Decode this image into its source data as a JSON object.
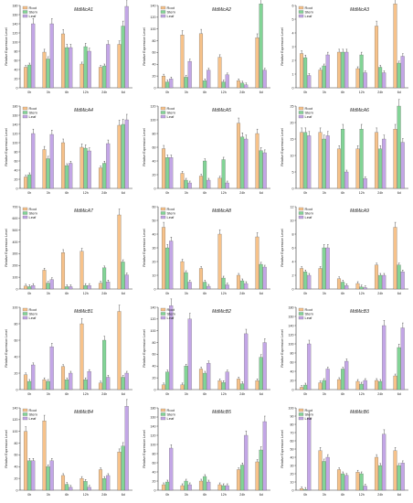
{
  "figure": {
    "ylabel": "Relative Expression Level",
    "colors": {
      "Root": "#f7c28a",
      "Stem": "#82d496",
      "Leaf": "#c3a6e6"
    },
    "legend": [
      "Root",
      "Stem",
      "Leaf"
    ]
  },
  "chart_data": [
    {
      "type": "bar",
      "title": "MdMicA1",
      "categories": [
        "0h",
        "3h",
        "6h",
        "12h",
        "24h",
        "6d"
      ],
      "yticks": [
        0,
        20,
        40,
        60,
        80,
        100,
        120,
        140,
        160,
        180
      ],
      "ylim": [
        0,
        180
      ],
      "series": [
        {
          "name": "Root",
          "values": [
            45,
            78,
            118,
            52,
            45,
            95
          ]
        },
        {
          "name": "Stem",
          "values": [
            50,
            63,
            88,
            90,
            48,
            135
          ]
        },
        {
          "name": "Leaf",
          "values": [
            140,
            140,
            88,
            80,
            95,
            178
          ]
        }
      ]
    },
    {
      "type": "bar",
      "title": "MdMicA2",
      "categories": [
        "0h",
        "3h",
        "6h",
        "12h",
        "24h",
        "6d"
      ],
      "yticks": [
        0,
        20,
        40,
        60,
        80,
        100,
        120,
        140
      ],
      "ylim": [
        0,
        140
      ],
      "series": [
        {
          "name": "Root",
          "values": [
            20,
            90,
            92,
            52,
            12,
            85
          ]
        },
        {
          "name": "Stem",
          "values": [
            10,
            18,
            12,
            10,
            8,
            150
          ]
        },
        {
          "name": "Leaf",
          "values": [
            15,
            45,
            30,
            22,
            5,
            30
          ]
        }
      ]
    },
    {
      "type": "bar",
      "title": "MdMicA3",
      "categories": [
        "0h",
        "3h",
        "6h",
        "12h",
        "24h",
        "6d"
      ],
      "yticks": [
        0,
        1,
        2,
        3,
        4,
        5,
        6
      ],
      "ylim": [
        0,
        6
      ],
      "series": [
        {
          "name": "Root",
          "values": [
            2.5,
            1.3,
            2.6,
            1.4,
            4.5,
            6.2
          ]
        },
        {
          "name": "Stem",
          "values": [
            2.2,
            1.6,
            2.6,
            2.4,
            1.5,
            1.8
          ]
        },
        {
          "name": "Leaf",
          "values": [
            0.9,
            2.4,
            2.6,
            1.1,
            1.1,
            2.3
          ]
        }
      ]
    },
    {
      "type": "bar",
      "title": "MdMicA4",
      "categories": [
        "0h",
        "3h",
        "6h",
        "12h",
        "24h",
        "6d"
      ],
      "yticks": [
        0,
        20,
        40,
        60,
        80,
        100,
        120,
        140,
        160,
        180
      ],
      "ylim": [
        0,
        180
      ],
      "series": [
        {
          "name": "Root",
          "values": [
            25,
            85,
            100,
            90,
            45,
            138
          ]
        },
        {
          "name": "Stem",
          "values": [
            30,
            65,
            50,
            88,
            55,
            140
          ]
        },
        {
          "name": "Leaf",
          "values": [
            120,
            118,
            55,
            82,
            98,
            150
          ]
        }
      ]
    },
    {
      "type": "bar",
      "title": "MdMicA5",
      "categories": [
        "0h",
        "3h",
        "6h",
        "12h",
        "24h",
        "6d"
      ],
      "yticks": [
        0,
        20,
        40,
        60,
        80,
        100,
        120
      ],
      "ylim": [
        0,
        120
      ],
      "series": [
        {
          "name": "Root",
          "values": [
            58,
            22,
            18,
            15,
            95,
            80
          ]
        },
        {
          "name": "Stem",
          "values": [
            45,
            12,
            40,
            42,
            75,
            55
          ]
        },
        {
          "name": "Leaf",
          "values": [
            45,
            8,
            12,
            8,
            72,
            52
          ]
        }
      ]
    },
    {
      "type": "bar",
      "title": "MdMicA6",
      "categories": [
        "0h",
        "3h",
        "6h",
        "12h",
        "24h",
        "6d"
      ],
      "yticks": [
        0,
        5,
        10,
        15,
        20,
        25
      ],
      "ylim": [
        0,
        25
      ],
      "series": [
        {
          "name": "Root",
          "values": [
            17,
            17,
            12,
            12,
            17,
            18
          ]
        },
        {
          "name": "Stem",
          "values": [
            17,
            15,
            18,
            18,
            12,
            25
          ]
        },
        {
          "name": "Leaf",
          "values": [
            16,
            16,
            5,
            3,
            15,
            14
          ]
        }
      ]
    },
    {
      "type": "bar",
      "title": "MdMicA7",
      "categories": [
        "0h",
        "3h",
        "6h",
        "12h",
        "24h",
        "6d"
      ],
      "yticks": [
        0,
        100,
        200,
        300,
        400,
        500,
        600,
        700
      ],
      "ylim": [
        0,
        700
      ],
      "series": [
        {
          "name": "Root",
          "values": [
            25,
            160,
            310,
            320,
            50,
            630
          ]
        },
        {
          "name": "Stem",
          "values": [
            20,
            50,
            20,
            30,
            180,
            230
          ]
        },
        {
          "name": "Leaf",
          "values": [
            30,
            80,
            20,
            30,
            60,
            120
          ]
        }
      ]
    },
    {
      "type": "bar",
      "title": "MdMicA8",
      "categories": [
        "0h",
        "3h",
        "6h",
        "12h",
        "24h",
        "6d"
      ],
      "yticks": [
        0,
        10,
        20,
        30,
        40,
        50,
        60
      ],
      "ylim": [
        0,
        60
      ],
      "series": [
        {
          "name": "Root",
          "values": [
            45,
            20,
            15,
            40,
            10,
            38
          ]
        },
        {
          "name": "Stem",
          "values": [
            30,
            12,
            5,
            8,
            6,
            18
          ]
        },
        {
          "name": "Leaf",
          "values": [
            35,
            5,
            2,
            3,
            4,
            16
          ]
        }
      ]
    },
    {
      "type": "bar",
      "title": "MdMicA9",
      "categories": [
        "0h",
        "3h",
        "6h",
        "12h",
        "24h",
        "6d"
      ],
      "yticks": [
        0,
        2,
        4,
        6,
        8,
        10,
        12
      ],
      "ylim": [
        0,
        12
      ],
      "series": [
        {
          "name": "Root",
          "values": [
            3,
            3,
            1.5,
            0.8,
            3.5,
            9
          ]
        },
        {
          "name": "Stem",
          "values": [
            2.5,
            6,
            1,
            0.3,
            2,
            3.5
          ]
        },
        {
          "name": "Leaf",
          "values": [
            2,
            6,
            0.5,
            0.2,
            2,
            2.5
          ]
        }
      ]
    },
    {
      "type": "bar",
      "title": "MdMicB1",
      "categories": [
        "0h",
        "3h",
        "6h",
        "12h",
        "24h",
        "6d"
      ],
      "yticks": [
        0,
        20,
        40,
        60,
        80,
        100
      ],
      "ylim": [
        0,
        100
      ],
      "series": [
        {
          "name": "Root",
          "values": [
            18,
            12,
            28,
            80,
            8,
            95
          ]
        },
        {
          "name": "Stem",
          "values": [
            10,
            10,
            12,
            12,
            60,
            15
          ]
        },
        {
          "name": "Leaf",
          "values": [
            30,
            52,
            20,
            22,
            15,
            20
          ]
        }
      ]
    },
    {
      "type": "bar",
      "title": "MdMicB2",
      "categories": [
        "0h",
        "3h",
        "6h",
        "12h",
        "24h",
        "6d"
      ],
      "yticks": [
        0,
        20,
        40,
        60,
        80,
        100,
        120,
        140
      ],
      "ylim": [
        0,
        140
      ],
      "series": [
        {
          "name": "Root",
          "values": [
            8,
            8,
            35,
            15,
            18,
            15
          ]
        },
        {
          "name": "Stem",
          "values": [
            30,
            40,
            28,
            12,
            10,
            55
          ]
        },
        {
          "name": "Leaf",
          "values": [
            150,
            120,
            45,
            30,
            95,
            80
          ]
        }
      ]
    },
    {
      "type": "bar",
      "title": "MdMicB3",
      "categories": [
        "0h",
        "3h",
        "6h",
        "12h",
        "24h",
        "6d"
      ],
      "yticks": [
        0,
        20,
        40,
        60,
        80,
        100,
        120,
        140,
        160,
        180
      ],
      "ylim": [
        0,
        180
      ],
      "series": [
        {
          "name": "Root",
          "values": [
            5,
            15,
            22,
            18,
            20,
            30
          ]
        },
        {
          "name": "Stem",
          "values": [
            10,
            20,
            45,
            12,
            18,
            92
          ]
        },
        {
          "name": "Leaf",
          "values": [
            100,
            45,
            62,
            20,
            140,
            135
          ]
        }
      ]
    },
    {
      "type": "bar",
      "title": "MdMicB4",
      "categories": [
        "0h",
        "3h",
        "6h",
        "12h",
        "24h",
        "6d"
      ],
      "yticks": [
        0,
        20,
        40,
        60,
        80,
        100,
        120,
        140
      ],
      "ylim": [
        0,
        140
      ],
      "series": [
        {
          "name": "Root",
          "values": [
            100,
            118,
            25,
            20,
            35,
            65
          ]
        },
        {
          "name": "Stem",
          "values": [
            50,
            40,
            10,
            15,
            20,
            75
          ]
        },
        {
          "name": "Leaf",
          "values": [
            50,
            50,
            5,
            5,
            25,
            148
          ]
        }
      ]
    },
    {
      "type": "bar",
      "title": "MdMicB5",
      "categories": [
        "0h",
        "3h",
        "6h",
        "12h",
        "24h",
        "6d"
      ],
      "yticks": [
        0,
        20,
        40,
        60,
        80,
        100,
        120,
        140,
        160,
        180
      ],
      "ylim": [
        0,
        180
      ],
      "series": [
        {
          "name": "Root",
          "values": [
            12,
            10,
            20,
            12,
            45,
            62
          ]
        },
        {
          "name": "Stem",
          "values": [
            18,
            20,
            30,
            10,
            55,
            88
          ]
        },
        {
          "name": "Leaf",
          "values": [
            92,
            12,
            18,
            10,
            120,
            150
          ]
        }
      ]
    },
    {
      "type": "bar",
      "title": "MdMicB6",
      "categories": [
        "0h",
        "3h",
        "6h",
        "12h",
        "24h",
        "6d"
      ],
      "yticks": [
        0,
        10,
        20,
        30,
        40,
        50,
        60,
        70,
        80,
        90,
        100
      ],
      "ylim": [
        0,
        100
      ],
      "series": [
        {
          "name": "Root",
          "values": [
            2,
            48,
            25,
            22,
            40,
            48
          ]
        },
        {
          "name": "Stem",
          "values": [
            1,
            35,
            20,
            20,
            30,
            30
          ]
        },
        {
          "name": "Leaf",
          "values": [
            88,
            40,
            18,
            5,
            68,
            33
          ]
        }
      ]
    }
  ]
}
